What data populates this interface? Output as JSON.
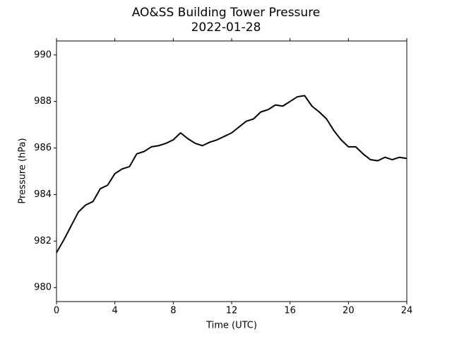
{
  "chart_data": {
    "type": "line",
    "title": "AO&SS Building Tower Pressure",
    "subtitle": "2022-01-28",
    "x_label": "Time (UTC)",
    "y_label": "Pressure (hPa)",
    "x": [
      0,
      0.5,
      1,
      1.5,
      2,
      2.5,
      3,
      3.5,
      4,
      4.5,
      5,
      5.5,
      6,
      6.5,
      7,
      7.5,
      8,
      8.5,
      9,
      9.5,
      10,
      10.5,
      11,
      11.5,
      12,
      12.5,
      13,
      13.5,
      14,
      14.5,
      15,
      15.5,
      16,
      16.5,
      17,
      17.5,
      18,
      18.5,
      19,
      19.5,
      20,
      20.5,
      21,
      21.5,
      22,
      22.5,
      23,
      23.5,
      24
    ],
    "series": [
      {
        "name": "Pressure",
        "color": "#000000",
        "values": [
          981.5,
          982.05,
          982.65,
          983.25,
          983.55,
          983.7,
          984.25,
          984.4,
          984.9,
          985.1,
          985.2,
          985.75,
          985.85,
          986.05,
          986.1,
          986.2,
          986.35,
          986.65,
          986.4,
          986.2,
          986.1,
          986.25,
          986.35,
          986.5,
          986.65,
          986.9,
          987.15,
          987.25,
          987.55,
          987.65,
          987.85,
          987.8,
          988.0,
          988.2,
          988.25,
          987.8,
          987.55,
          987.25,
          986.75,
          986.35,
          986.05,
          986.05,
          985.75,
          985.5,
          985.45,
          985.6,
          985.5,
          985.6,
          985.55
        ]
      }
    ],
    "xlim": [
      0,
      24
    ],
    "xticks": [
      0,
      4,
      8,
      12,
      16,
      20,
      24
    ],
    "ylim": [
      979.4,
      990.6
    ],
    "yticks": [
      980,
      982,
      984,
      986,
      988,
      990
    ],
    "grid": false
  }
}
